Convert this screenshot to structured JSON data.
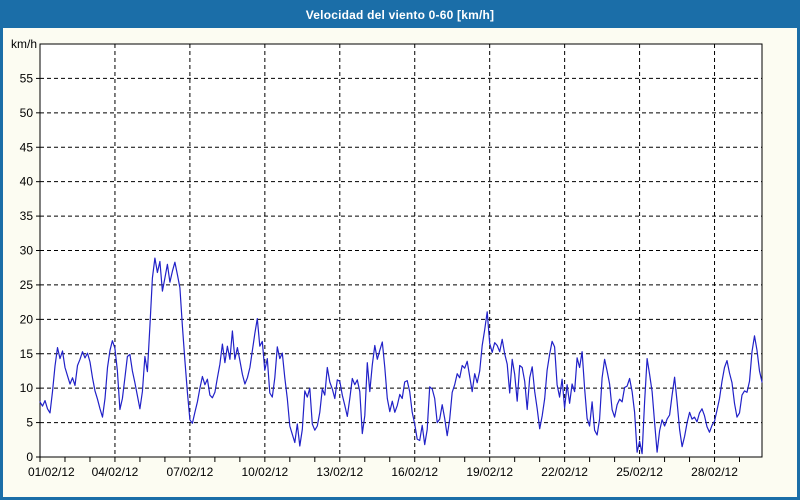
{
  "window": {
    "title": "Velocidad del viento 0-60 [km/h]"
  },
  "colors": {
    "title_bar": "#1b6ea8",
    "window_background": "#fcfcf2",
    "plot_background": "#ffffff",
    "line": "#2121c8",
    "grid": "#000000",
    "text": "#000000"
  },
  "chart_data": {
    "type": "line",
    "title": "Velocidad del viento 0-60 [km/h]",
    "xlabel": "",
    "ylabel": "km/h",
    "ylim": [
      0,
      60
    ],
    "y_ticks": [
      0,
      5,
      10,
      15,
      20,
      25,
      30,
      35,
      40,
      45,
      50,
      55
    ],
    "x_ticks": [
      {
        "day": 0,
        "label": "01/02/12"
      },
      {
        "day": 3,
        "label": "04/02/12"
      },
      {
        "day": 6,
        "label": "07/02/12"
      },
      {
        "day": 9,
        "label": "10/02/12"
      },
      {
        "day": 12,
        "label": "13/02/12"
      },
      {
        "day": 15,
        "label": "16/02/12"
      },
      {
        "day": 18,
        "label": "19/02/12"
      },
      {
        "day": 21,
        "label": "22/02/12"
      },
      {
        "day": 24,
        "label": "25/02/12"
      },
      {
        "day": 27,
        "label": "28/02/12"
      }
    ],
    "minor_x_tick_every_days": 1,
    "x_max_days": 28.9,
    "grid": "dashed",
    "legend_position": "none",
    "series": [
      {
        "name": "Velocidad del viento",
        "color": "#2121c8",
        "start_day": 0,
        "step_days": 0.1,
        "values": [
          8.0,
          7.4,
          8.2,
          7.0,
          6.4,
          9.5,
          13.2,
          15.9,
          14.3,
          15.4,
          13.0,
          11.8,
          10.6,
          11.5,
          10.4,
          13.3,
          14.2,
          15.3,
          14.4,
          15.1,
          13.8,
          11.5,
          9.6,
          8.4,
          7.0,
          5.8,
          8.5,
          13.0,
          15.5,
          16.9,
          15.8,
          12.5,
          6.9,
          8.5,
          11.5,
          14.6,
          14.9,
          12.5,
          10.8,
          8.9,
          7.0,
          9.5,
          14.6,
          12.4,
          19.0,
          26.0,
          28.9,
          26.8,
          28.4,
          24.1,
          26.0,
          28.0,
          25.4,
          27.0,
          28.3,
          26.5,
          24.6,
          19.0,
          14.0,
          9.4,
          5.4,
          4.9,
          6.5,
          8.0,
          10.0,
          11.7,
          10.5,
          11.3,
          9.0,
          8.6,
          9.4,
          11.5,
          13.5,
          16.4,
          13.7,
          16.1,
          14.2,
          18.3,
          14.2,
          15.9,
          14.0,
          12.0,
          10.6,
          11.5,
          13.0,
          15.5,
          18.0,
          20.1,
          16.1,
          16.8,
          12.6,
          14.3,
          9.3,
          8.7,
          11.5,
          16.0,
          14.3,
          15.1,
          11.5,
          8.5,
          4.5,
          3.3,
          2.1,
          4.8,
          1.6,
          4.0,
          9.6,
          8.7,
          10.0,
          4.8,
          3.9,
          4.5,
          6.5,
          9.9,
          9.0,
          13.0,
          10.9,
          9.9,
          8.5,
          11.2,
          11.0,
          9.0,
          7.5,
          5.9,
          8.5,
          11.4,
          10.5,
          11.2,
          9.5,
          3.4,
          6.0,
          13.7,
          9.5,
          13.4,
          16.2,
          14.2,
          15.5,
          16.7,
          13.0,
          8.5,
          6.6,
          8.1,
          6.5,
          7.5,
          9.1,
          8.5,
          10.9,
          11.1,
          9.5,
          6.5,
          4.8,
          2.6,
          2.4,
          4.6,
          1.8,
          4.0,
          10.2,
          9.9,
          8.5,
          5.0,
          5.5,
          7.6,
          5.6,
          3.1,
          5.5,
          9.4,
          10.5,
          12.1,
          11.5,
          13.3,
          12.9,
          13.9,
          11.7,
          9.5,
          12.1,
          10.8,
          12.5,
          16.2,
          18.5,
          21.1,
          16.5,
          15.2,
          16.6,
          16.2,
          15.3,
          17.1,
          15.0,
          13.5,
          9.3,
          14.2,
          12.0,
          8.1,
          13.3,
          13.0,
          11.0,
          6.9,
          11.5,
          13.1,
          9.5,
          7.0,
          4.1,
          6.0,
          8.5,
          12.6,
          14.9,
          16.8,
          16.0,
          10.5,
          8.7,
          11.3,
          7.1,
          10.5,
          7.8,
          10.6,
          9.5,
          14.4,
          13.0,
          15.3,
          10.0,
          5.6,
          4.5,
          8.0,
          3.9,
          3.2,
          5.5,
          11.5,
          14.2,
          12.5,
          10.6,
          6.9,
          5.8,
          7.6,
          8.4,
          8.0,
          10.1,
          10.3,
          11.4,
          9.5,
          6.5,
          0.7,
          2.3,
          0.5,
          8.0,
          14.3,
          12.0,
          9.5,
          5.0,
          0.7,
          3.8,
          5.4,
          4.5,
          5.5,
          6.1,
          9.0,
          11.6,
          8.0,
          4.0,
          1.5,
          3.0,
          5.0,
          6.5,
          5.5,
          5.8,
          5.1,
          6.4,
          7.0,
          6.0,
          4.4,
          3.6,
          4.6,
          5.2,
          6.8,
          8.5,
          11.0,
          13.0,
          14.0,
          12.2,
          10.8,
          7.8,
          5.8,
          6.4,
          9.0,
          9.6,
          9.4,
          11.0,
          15.3,
          17.6,
          15.5,
          12.5,
          10.9
        ]
      }
    ]
  }
}
